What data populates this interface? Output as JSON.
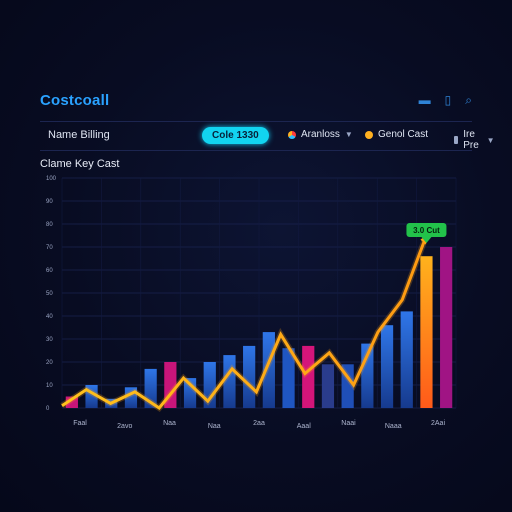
{
  "app": {
    "title": "Costcoall"
  },
  "window_controls": [
    {
      "name": "minimize-icon",
      "glyph": "▬"
    },
    {
      "name": "restore-icon",
      "glyph": "▯"
    },
    {
      "name": "search-icon",
      "glyph": "⌕"
    }
  ],
  "toolbar": {
    "label": "Name Billing",
    "pill_label": "Cole 1330",
    "legend_a_label": "Aranloss",
    "legend_b_label": "Genol Cast",
    "dropdown_label": "Ire Pre",
    "accent_color": "#12d4f0"
  },
  "chart_data": {
    "type": "bar",
    "title": "Clame Key Cast",
    "xlabel": "",
    "ylabel": "",
    "y_ticks": [
      "0",
      "10",
      "20",
      "30",
      "40",
      "50",
      "60",
      "70",
      "80",
      "90",
      "100"
    ],
    "ylim": [
      0,
      100
    ],
    "x_tick_labels": [
      "Faal",
      "2avo",
      "Naa",
      "Naa",
      "2aa",
      "Aaal",
      "Naai",
      "Naaa",
      "2Aai"
    ],
    "values": [
      5,
      10,
      4,
      9,
      17,
      20,
      13,
      20,
      23,
      27,
      33,
      26,
      27,
      19,
      19,
      28,
      36,
      42,
      66,
      70
    ],
    "bar_colors": [
      "#c8157a",
      "#2f6fd8",
      "#2f6fd8",
      "#2f6fd8",
      "#2f6fd8",
      "#c8157a",
      "#2f6fd8",
      "#2f6fd8",
      "#2f6fd8",
      "#2f6fd8",
      "#2f6fd8",
      "#1f56c2",
      "#d4157a",
      "#2a3c8c",
      "#1f4fb8",
      "#2f6fd8",
      "#2f6fd8",
      "#2f6fd8",
      "#ff7a1c",
      "#a01484"
    ],
    "line_values": [
      1,
      8,
      2,
      7,
      0,
      13,
      3,
      17,
      7,
      32,
      15,
      24,
      10,
      33,
      47,
      75
    ],
    "callout_label": "3.0 Cut",
    "callout_color": "#22c24a"
  }
}
